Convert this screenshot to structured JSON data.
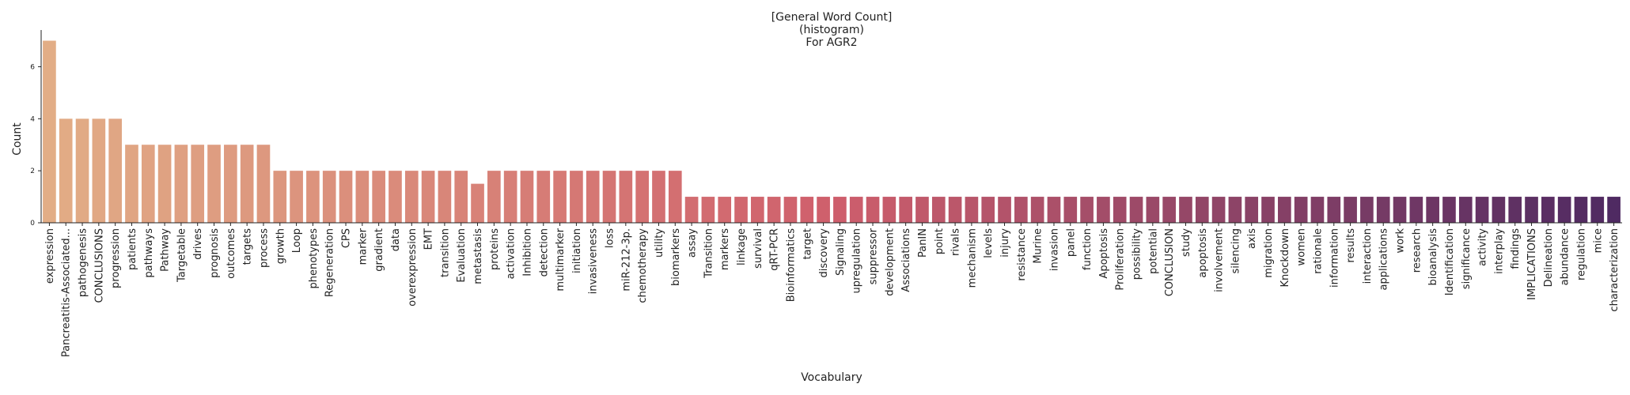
{
  "chart_data": {
    "type": "bar",
    "title": [
      "[General Word Count]",
      "(histogram)",
      "For AGR2"
    ],
    "xlabel": "Vocabulary",
    "ylabel": "Count",
    "ylim": [
      0,
      7.35
    ],
    "yticks": [
      0,
      2,
      4,
      6
    ],
    "grid": false,
    "legend": "none",
    "color_start": "#e2ad86",
    "color_mid": "#cf5f6c",
    "color_end": "#4f2a62",
    "categories": [
      "expression",
      "Pancreatitis-Associated...",
      "pathogenesis",
      "CONCLUSIONS",
      "progression",
      "patients",
      "pathways",
      "Pathway",
      "Targetable",
      "drives",
      "prognosis",
      "outcomes",
      "targets",
      "process",
      "growth",
      "Loop",
      "phenotypes",
      "Regeneration",
      "CPS",
      "marker",
      "gradient",
      "data",
      "overexpression",
      "EMT",
      "transition",
      "Evaluation",
      "metastasis",
      "proteins",
      "activation",
      "Inhibition",
      "detection",
      "multimarker",
      "initiation",
      "invasiveness",
      "loss",
      "miR-212-3p.",
      "chemotherapy",
      "utility",
      "biomarkers",
      "assay",
      "Transition",
      "markers",
      "linkage",
      "survival",
      "qRT-PCR",
      "Bioinformatics",
      "target",
      "discovery",
      "Signaling",
      "upregulation",
      "suppressor",
      "development",
      "Associations",
      "PanIN",
      "point",
      "rivals",
      "mechanism",
      "levels",
      "injury",
      "resistance",
      "Murine",
      "invasion",
      "panel",
      "function",
      "Apoptosis",
      "Proliferation",
      "possibility",
      "potential",
      "CONCLUSION",
      "study",
      "apoptosis",
      "involvement",
      "silencing",
      "axis",
      "migration",
      "Knockdown",
      "women",
      "rationale",
      "information",
      "results",
      "interaction",
      "applications",
      "work",
      "research",
      "bioanalysis",
      "Identification",
      "significance",
      "activity",
      "interplay",
      "findings",
      "IMPLICATIONS",
      "Delineation",
      "abundance",
      "regulation",
      "mice",
      "characterization"
    ],
    "values": [
      7,
      4,
      4,
      4,
      4,
      3,
      3,
      3,
      3,
      3,
      3,
      3,
      3,
      3,
      2,
      2,
      2,
      2,
      2,
      2,
      2,
      2,
      2,
      2,
      2,
      2,
      1.5,
      2,
      2,
      2,
      2,
      2,
      2,
      2,
      2,
      2,
      2,
      2,
      2,
      1,
      1,
      1,
      1,
      1,
      1,
      1,
      1,
      1,
      1,
      1,
      1,
      1,
      1,
      1,
      1,
      1,
      1,
      1,
      1,
      1,
      1,
      1,
      1,
      1,
      1,
      1,
      1,
      1,
      1,
      1,
      1,
      1,
      1,
      1,
      1,
      1,
      1,
      1,
      1,
      1,
      1,
      1,
      1,
      1,
      1,
      1,
      1,
      1,
      1,
      1,
      1,
      1,
      1,
      1,
      1,
      1
    ]
  }
}
